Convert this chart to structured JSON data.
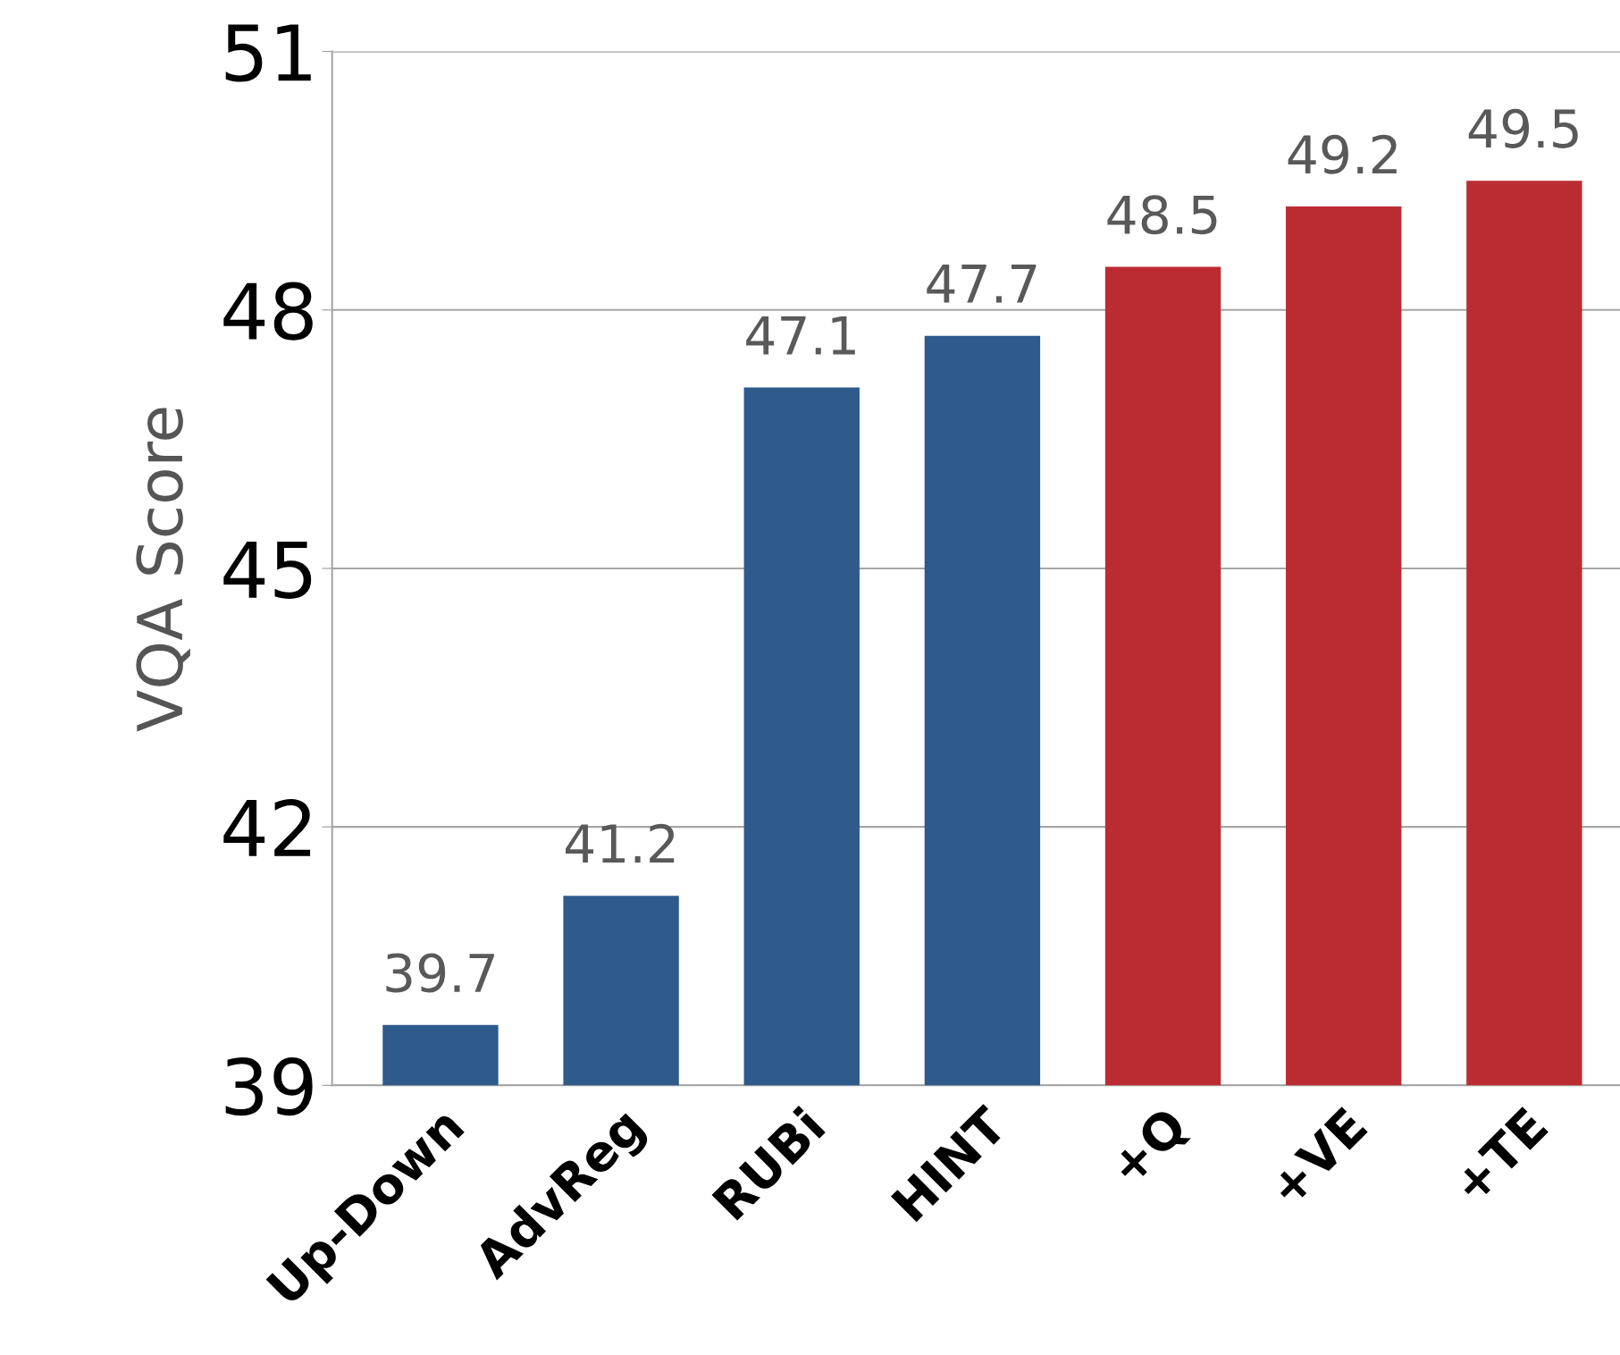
{
  "chart_data": {
    "type": "bar",
    "ylabel": "VQA Score",
    "categories": [
      "Up-Down",
      "AdvReg",
      "RUBi",
      "HINT",
      "+Q",
      "+VE",
      "+TE"
    ],
    "values": [
      39.7,
      41.2,
      47.1,
      47.7,
      48.5,
      49.2,
      49.5
    ],
    "colors": [
      "#2e5a8c",
      "#2e5a8c",
      "#2e5a8c",
      "#2e5a8c",
      "#bb2c32",
      "#bb2c32",
      "#bb2c32"
    ],
    "ylim": [
      39,
      51
    ],
    "yticks": [
      39,
      42,
      45,
      48,
      51
    ],
    "grid": "y",
    "data_labels": true
  }
}
